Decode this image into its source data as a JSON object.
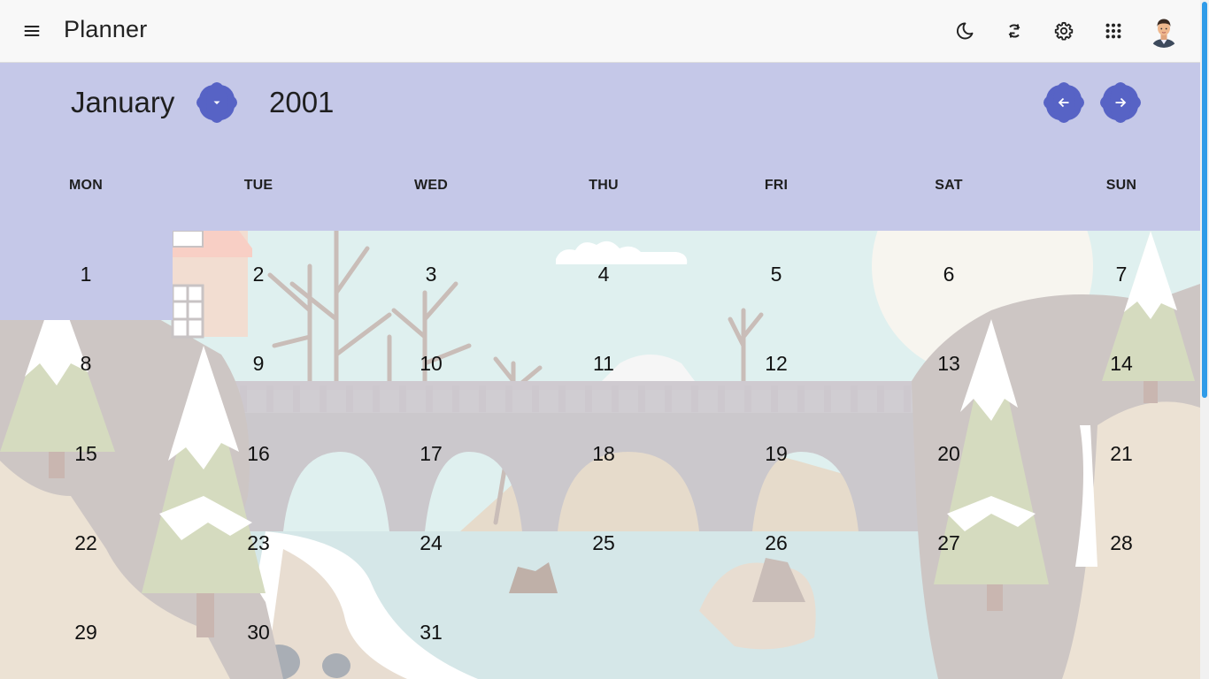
{
  "app": {
    "title": "Planner"
  },
  "toolbar": {
    "menu_icon": "menu-icon",
    "theme_icon": "moon-icon",
    "sync_icon": "sync-icon",
    "settings_icon": "gear-icon",
    "apps_icon": "apps-grid-icon",
    "avatar_icon": "user-avatar"
  },
  "calendar": {
    "month": "January",
    "year": "2001",
    "accent_color": "#5763c5",
    "header_bg": "#c5c8e8",
    "weekdays": [
      "MON",
      "TUE",
      "WED",
      "THU",
      "FRI",
      "SAT",
      "SUN"
    ],
    "weeks": [
      [
        "1",
        "2",
        "3",
        "4",
        "5",
        "6",
        "7"
      ],
      [
        "8",
        "9",
        "10",
        "11",
        "12",
        "13",
        "14"
      ],
      [
        "15",
        "16",
        "17",
        "18",
        "19",
        "20",
        "21"
      ],
      [
        "22",
        "23",
        "24",
        "25",
        "26",
        "27",
        "28"
      ],
      [
        "29",
        "30",
        "31",
        "",
        "",
        "",
        ""
      ]
    ],
    "selected_day": "1"
  }
}
